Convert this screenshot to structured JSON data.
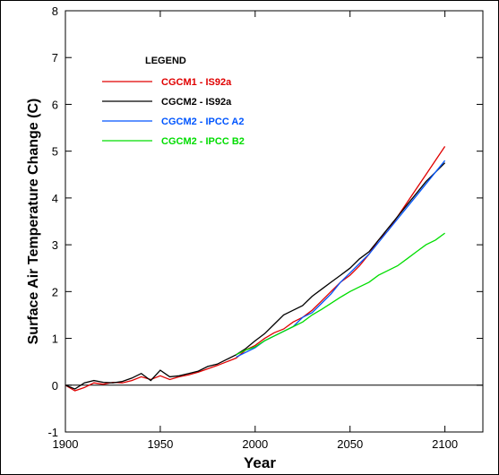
{
  "chart_data": {
    "type": "line",
    "xlabel": "Year",
    "ylabel": "Surface Air Temperature Change (C)",
    "xlim": [
      1900,
      2120
    ],
    "ylim": [
      -1,
      8
    ],
    "xticks": [
      1900,
      1950,
      2000,
      2050,
      2100
    ],
    "yticks": [
      -1,
      0,
      1,
      2,
      3,
      4,
      5,
      6,
      7,
      8
    ],
    "zero_line": true,
    "legend": {
      "title": "LEGEND",
      "placement": "top-left"
    },
    "series": [
      {
        "name": "CGCM1 - IS92a",
        "color": "#e00000",
        "x": [
          1900,
          1905,
          1910,
          1915,
          1920,
          1925,
          1930,
          1935,
          1940,
          1945,
          1950,
          1955,
          1960,
          1965,
          1970,
          1975,
          1980,
          1985,
          1990,
          1995,
          2000,
          2005,
          2010,
          2015,
          2020,
          2025,
          2030,
          2035,
          2040,
          2045,
          2050,
          2055,
          2060,
          2065,
          2070,
          2075,
          2080,
          2085,
          2090,
          2095,
          2100
        ],
        "y": [
          0.0,
          -0.12,
          -0.05,
          0.05,
          0.02,
          0.06,
          0.05,
          0.1,
          0.18,
          0.12,
          0.2,
          0.12,
          0.18,
          0.22,
          0.28,
          0.35,
          0.42,
          0.5,
          0.58,
          0.75,
          0.85,
          1.0,
          1.12,
          1.2,
          1.35,
          1.45,
          1.6,
          1.8,
          2.0,
          2.2,
          2.35,
          2.55,
          2.8,
          3.1,
          3.3,
          3.6,
          3.9,
          4.2,
          4.5,
          4.8,
          5.1
        ]
      },
      {
        "name": "CGCM2 - IS92a",
        "color": "#000000",
        "x": [
          1900,
          1905,
          1910,
          1915,
          1920,
          1925,
          1930,
          1935,
          1940,
          1945,
          1950,
          1955,
          1960,
          1965,
          1970,
          1975,
          1980,
          1985,
          1990,
          1995,
          2000,
          2005,
          2010,
          2015,
          2020,
          2025,
          2030,
          2035,
          2040,
          2045,
          2050,
          2055,
          2060,
          2065,
          2070,
          2075,
          2080,
          2085,
          2090,
          2095,
          2100
        ],
        "y": [
          0.0,
          -0.08,
          0.05,
          0.1,
          0.06,
          0.05,
          0.08,
          0.15,
          0.25,
          0.1,
          0.32,
          0.18,
          0.2,
          0.25,
          0.3,
          0.4,
          0.45,
          0.55,
          0.65,
          0.78,
          0.95,
          1.1,
          1.3,
          1.5,
          1.6,
          1.7,
          1.9,
          2.05,
          2.2,
          2.35,
          2.5,
          2.7,
          2.85,
          3.1,
          3.35,
          3.6,
          3.85,
          4.1,
          4.35,
          4.55,
          4.75
        ]
      },
      {
        "name": "CGCM2 - IPCC A2",
        "color": "#0055ff",
        "x": [
          1990,
          1995,
          2000,
          2005,
          2010,
          2015,
          2020,
          2025,
          2030,
          2035,
          2040,
          2045,
          2050,
          2055,
          2060,
          2065,
          2070,
          2075,
          2080,
          2085,
          2090,
          2095,
          2100
        ],
        "y": [
          0.6,
          0.7,
          0.8,
          0.95,
          1.05,
          1.15,
          1.25,
          1.45,
          1.55,
          1.75,
          1.95,
          2.2,
          2.4,
          2.6,
          2.8,
          3.05,
          3.3,
          3.55,
          3.8,
          4.05,
          4.3,
          4.55,
          4.8
        ]
      },
      {
        "name": "CGCM2 - IPCC B2",
        "color": "#00dd00",
        "x": [
          1990,
          1995,
          2000,
          2005,
          2010,
          2015,
          2020,
          2025,
          2030,
          2035,
          2040,
          2045,
          2050,
          2055,
          2060,
          2065,
          2070,
          2075,
          2080,
          2085,
          2090,
          2095,
          2100
        ],
        "y": [
          0.65,
          0.75,
          0.82,
          0.95,
          1.05,
          1.15,
          1.25,
          1.35,
          1.5,
          1.62,
          1.75,
          1.88,
          2.0,
          2.1,
          2.2,
          2.35,
          2.45,
          2.55,
          2.7,
          2.85,
          3.0,
          3.1,
          3.25
        ]
      }
    ]
  }
}
